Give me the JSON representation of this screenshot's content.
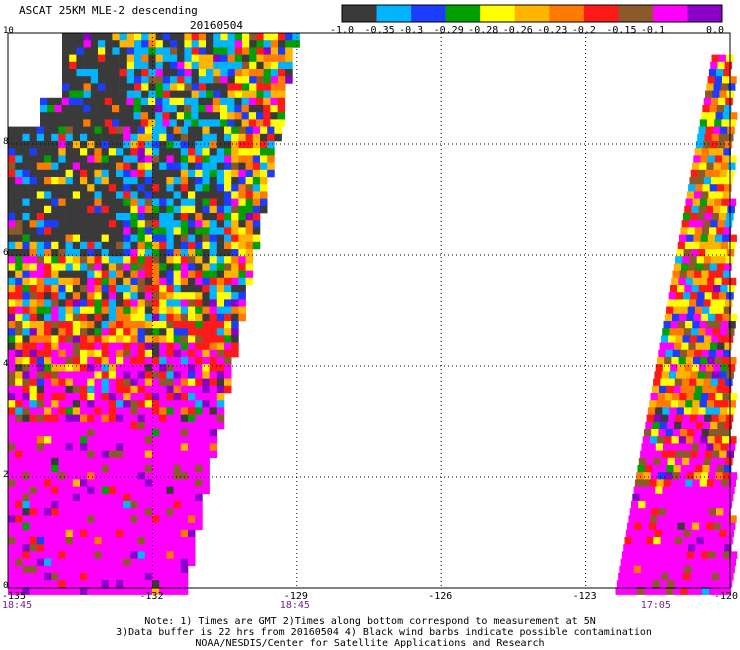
{
  "title": {
    "product": "ASCAT 25KM MLE-2 descending",
    "date": "20160504"
  },
  "colorbar": {
    "colors": [
      "#3a3a3a",
      "#00b4ff",
      "#1c3cff",
      "#00a000",
      "#ffff00",
      "#ffb400",
      "#ff7a00",
      "#ff1a1a",
      "#8b5a2b",
      "#ff00ff",
      "#8a00c8"
    ],
    "labels": [
      "-1.0",
      "-0.35",
      "-0.3",
      "-0.29",
      "-0.28",
      "-0.26",
      "-0.23",
      "-0.2",
      "-0.15",
      "-0.1",
      "0.0"
    ]
  },
  "map": {
    "y_ticks": [
      "10",
      "8",
      "6",
      "4",
      "2",
      "0"
    ],
    "x_ticks": [
      "-135",
      "-132",
      "-129",
      "-126",
      "-123",
      "-120"
    ],
    "grid": "dotted",
    "times": [
      {
        "label": "18:45",
        "lon": -135
      },
      {
        "label": "18:45",
        "lon": -129
      },
      {
        "label": "17:05",
        "lon": -121.5
      }
    ]
  },
  "notes": [
    "Note: 1) Times are GMT 2)Times along bottom correspond to measurement at 5N",
    "3)Data buffer is 22 hrs from 20160504 4) Black wind barbs indicate possible contamination",
    "NOAA/NESDIS/Center for Satellite Applications and Research"
  ]
}
